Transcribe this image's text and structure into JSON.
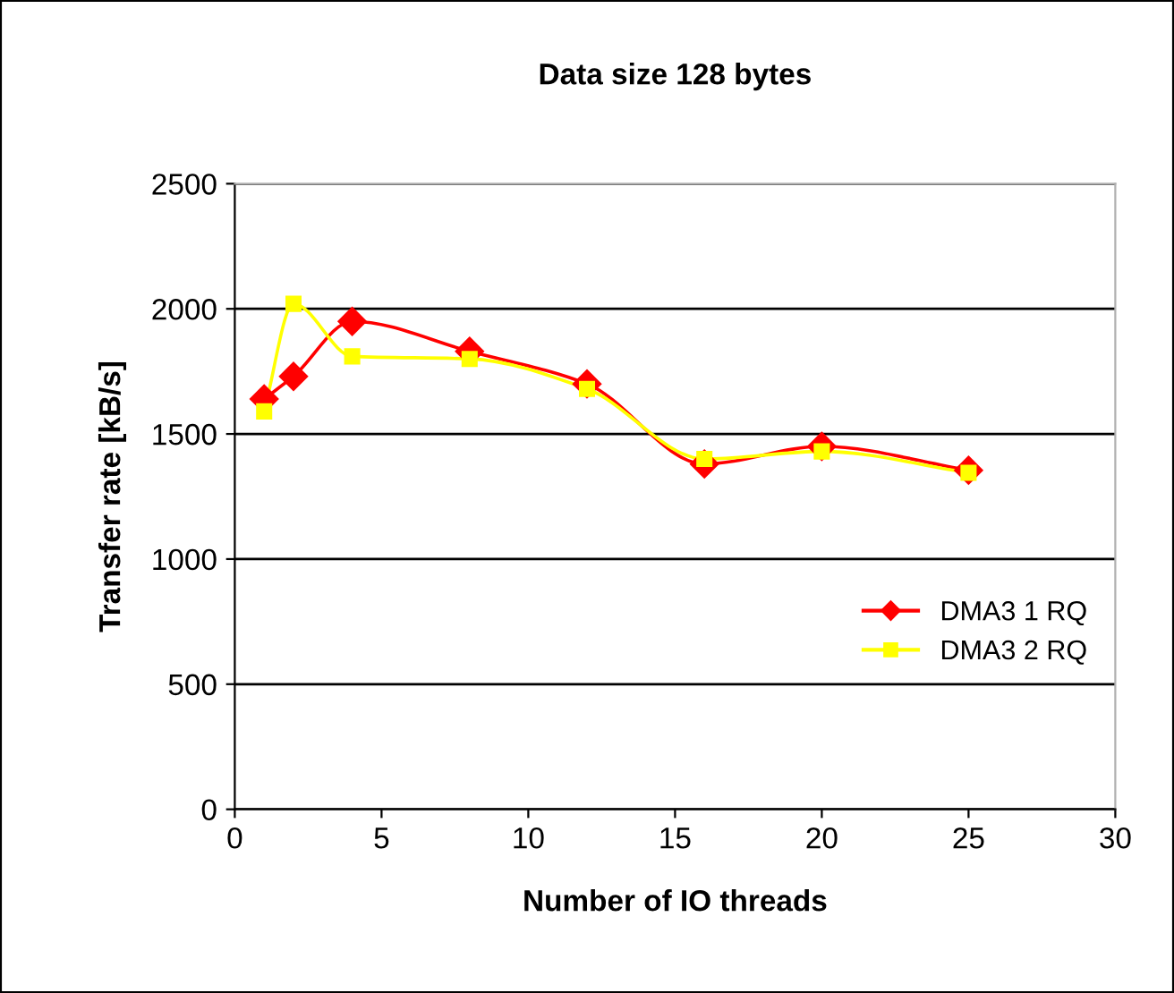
{
  "chart_data": {
    "type": "line",
    "title": "Data size 128 bytes",
    "xlabel": "Number of IO threads",
    "ylabel": "Transfer rate [kB/s]",
    "x": [
      1,
      2,
      4,
      8,
      12,
      16,
      20,
      25
    ],
    "series": [
      {
        "name": "DMA3 1 RQ",
        "color": "#ff0000",
        "marker": "diamond",
        "values": [
          1640,
          1730,
          1950,
          1830,
          1700,
          1380,
          1450,
          1355
        ]
      },
      {
        "name": "DMA3 2 RQ",
        "color": "#ffff00",
        "marker": "square",
        "values": [
          1590,
          2020,
          1810,
          1800,
          1680,
          1400,
          1430,
          1345
        ]
      }
    ],
    "xlim": [
      0,
      30
    ],
    "xticks": [
      0,
      5,
      10,
      15,
      20,
      25,
      30
    ],
    "ylim": [
      0,
      2500
    ],
    "yticks": [
      0,
      500,
      1000,
      1500,
      2000,
      2500
    ],
    "grid": "y",
    "legend": "bottom right"
  }
}
